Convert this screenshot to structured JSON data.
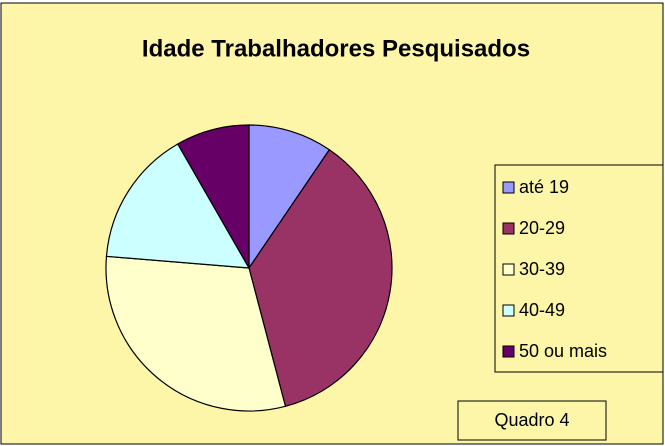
{
  "chart_data": {
    "type": "pie",
    "title": "Idade Trabalhadores Pesquisados",
    "categories": [
      "até 19",
      "20-29",
      "30-39",
      "40-49",
      "50 ou mais"
    ],
    "values": [
      9.5,
      36.4,
      30.4,
      15.4,
      8.3
    ],
    "colors": [
      "#9999ff",
      "#993366",
      "#ffffcc",
      "#ccffff",
      "#660066"
    ],
    "legend": "right",
    "annotation": "Quadro 4"
  }
}
